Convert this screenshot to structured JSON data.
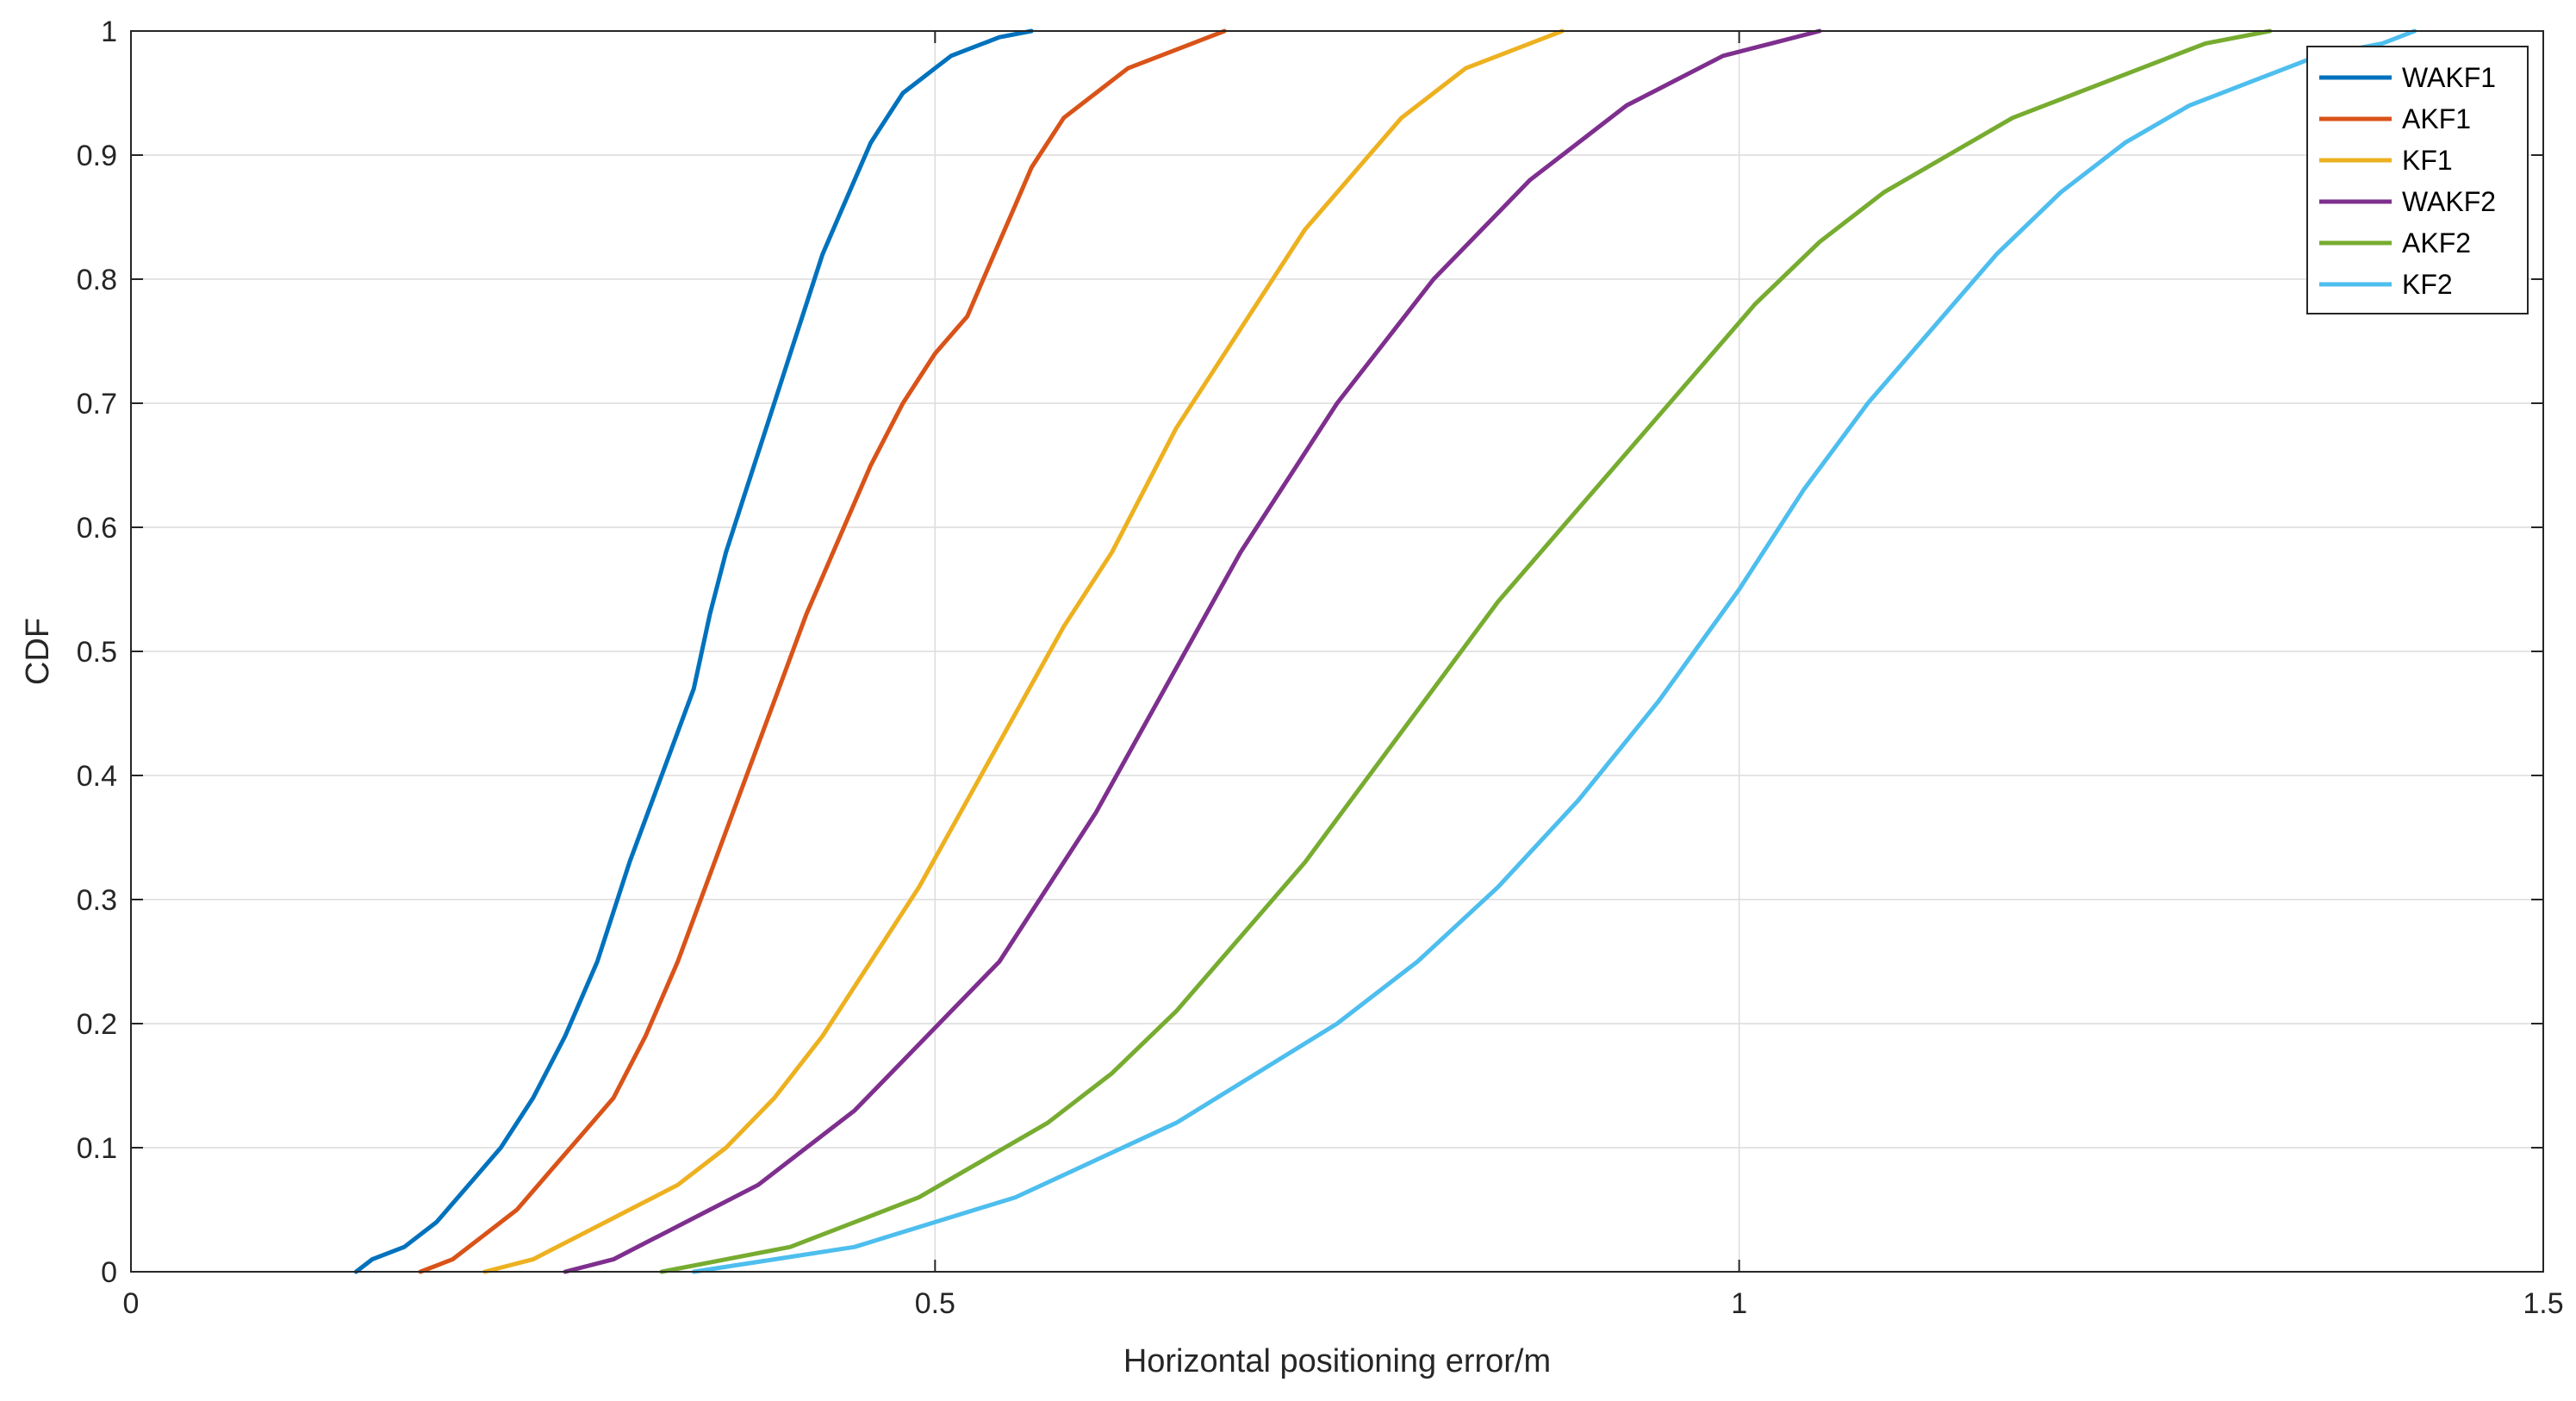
{
  "chart_data": {
    "type": "line",
    "title": "",
    "xlabel": "Horizontal positioning error/m",
    "ylabel": "CDF",
    "xlim": [
      0,
      1.5
    ],
    "ylim": [
      0,
      1
    ],
    "xticks": [
      0,
      0.5,
      1,
      1.5
    ],
    "xtick_labels": [
      "0",
      "0.5",
      "1",
      "1.5"
    ],
    "yticks": [
      0,
      0.1,
      0.2,
      0.3,
      0.4,
      0.5,
      0.6,
      0.7,
      0.8,
      0.9,
      1
    ],
    "ytick_labels": [
      "0",
      "0.1",
      "0.2",
      "0.3",
      "0.4",
      "0.5",
      "0.6",
      "0.7",
      "0.8",
      "0.9",
      "1"
    ],
    "grid": true,
    "legend_position": "top-right",
    "series": [
      {
        "name": "WAKF1",
        "color": "#0072BD",
        "x": [
          0.14,
          0.15,
          0.17,
          0.19,
          0.21,
          0.23,
          0.25,
          0.27,
          0.29,
          0.3,
          0.31,
          0.33,
          0.35,
          0.36,
          0.37,
          0.38,
          0.39,
          0.4,
          0.41,
          0.42,
          0.43,
          0.44,
          0.45,
          0.46,
          0.47,
          0.48,
          0.49,
          0.5,
          0.51,
          0.52,
          0.54,
          0.56
        ],
        "y": [
          0,
          0.01,
          0.02,
          0.04,
          0.07,
          0.1,
          0.14,
          0.19,
          0.25,
          0.29,
          0.33,
          0.4,
          0.47,
          0.53,
          0.58,
          0.62,
          0.66,
          0.7,
          0.74,
          0.78,
          0.82,
          0.85,
          0.88,
          0.91,
          0.93,
          0.95,
          0.96,
          0.97,
          0.98,
          0.985,
          0.995,
          1
        ]
      },
      {
        "name": "AKF1",
        "color": "#D95319",
        "x": [
          0.18,
          0.2,
          0.22,
          0.24,
          0.26,
          0.28,
          0.3,
          0.32,
          0.34,
          0.36,
          0.38,
          0.4,
          0.42,
          0.44,
          0.46,
          0.48,
          0.5,
          0.52,
          0.53,
          0.54,
          0.55,
          0.56,
          0.57,
          0.58,
          0.6,
          0.62,
          0.64,
          0.66,
          0.68
        ],
        "y": [
          0,
          0.01,
          0.03,
          0.05,
          0.08,
          0.11,
          0.14,
          0.19,
          0.25,
          0.32,
          0.39,
          0.46,
          0.53,
          0.59,
          0.65,
          0.7,
          0.74,
          0.77,
          0.8,
          0.83,
          0.86,
          0.89,
          0.91,
          0.93,
          0.95,
          0.97,
          0.98,
          0.99,
          1
        ]
      },
      {
        "name": "KF1",
        "color": "#EDB120",
        "x": [
          0.22,
          0.25,
          0.28,
          0.31,
          0.34,
          0.37,
          0.4,
          0.43,
          0.46,
          0.49,
          0.52,
          0.55,
          0.58,
          0.61,
          0.63,
          0.65,
          0.67,
          0.69,
          0.71,
          0.73,
          0.75,
          0.77,
          0.79,
          0.81,
          0.83,
          0.85,
          0.87,
          0.89
        ],
        "y": [
          0,
          0.01,
          0.03,
          0.05,
          0.07,
          0.1,
          0.14,
          0.19,
          0.25,
          0.31,
          0.38,
          0.45,
          0.52,
          0.58,
          0.63,
          0.68,
          0.72,
          0.76,
          0.8,
          0.84,
          0.87,
          0.9,
          0.93,
          0.95,
          0.97,
          0.98,
          0.99,
          1
        ]
      },
      {
        "name": "WAKF2",
        "color": "#7E2F8E",
        "x": [
          0.27,
          0.3,
          0.33,
          0.36,
          0.39,
          0.42,
          0.45,
          0.48,
          0.51,
          0.54,
          0.57,
          0.6,
          0.63,
          0.66,
          0.69,
          0.72,
          0.75,
          0.78,
          0.81,
          0.84,
          0.87,
          0.9,
          0.93,
          0.96,
          0.99,
          1.02,
          1.05
        ],
        "y": [
          0,
          0.01,
          0.03,
          0.05,
          0.07,
          0.1,
          0.13,
          0.17,
          0.21,
          0.25,
          0.31,
          0.37,
          0.44,
          0.51,
          0.58,
          0.64,
          0.7,
          0.75,
          0.8,
          0.84,
          0.88,
          0.91,
          0.94,
          0.96,
          0.98,
          0.99,
          1
        ]
      },
      {
        "name": "AKF2",
        "color": "#77AC30",
        "x": [
          0.33,
          0.37,
          0.41,
          0.45,
          0.49,
          0.53,
          0.57,
          0.61,
          0.65,
          0.69,
          0.73,
          0.77,
          0.81,
          0.85,
          0.89,
          0.93,
          0.97,
          1.01,
          1.05,
          1.09,
          1.13,
          1.17,
          1.21,
          1.25,
          1.29,
          1.33
        ],
        "y": [
          0,
          0.01,
          0.02,
          0.04,
          0.06,
          0.09,
          0.12,
          0.16,
          0.21,
          0.27,
          0.33,
          0.4,
          0.47,
          0.54,
          0.6,
          0.66,
          0.72,
          0.78,
          0.83,
          0.87,
          0.9,
          0.93,
          0.95,
          0.97,
          0.99,
          1
        ]
      },
      {
        "name": "KF2",
        "color": "#4DBEEE",
        "x": [
          0.35,
          0.4,
          0.45,
          0.5,
          0.55,
          0.6,
          0.65,
          0.7,
          0.75,
          0.8,
          0.85,
          0.9,
          0.95,
          1,
          1.04,
          1.08,
          1.12,
          1.16,
          1.2,
          1.24,
          1.28,
          1.32,
          1.36,
          1.4,
          1.42
        ],
        "y": [
          0,
          0.01,
          0.02,
          0.04,
          0.06,
          0.09,
          0.12,
          0.16,
          0.2,
          0.25,
          0.31,
          0.38,
          0.46,
          0.55,
          0.63,
          0.7,
          0.76,
          0.82,
          0.87,
          0.91,
          0.94,
          0.96,
          0.98,
          0.99,
          1
        ]
      }
    ]
  }
}
